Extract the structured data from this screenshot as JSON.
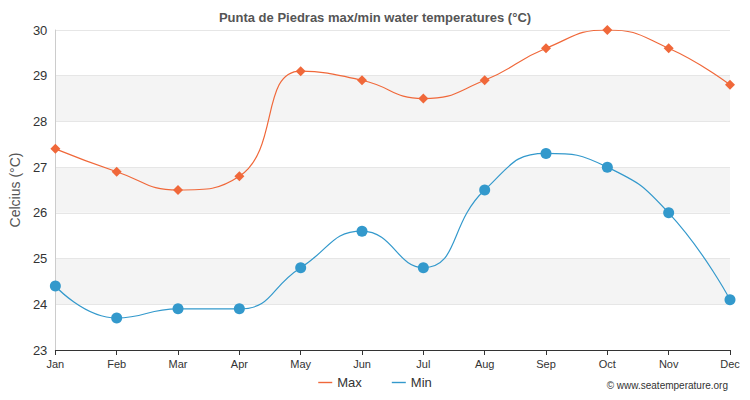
{
  "chart_data": {
    "type": "line",
    "title": "Punta de Piedras max/min water temperatures (°C)",
    "ylabel": "Celcius (°C)",
    "categories": [
      "Jan",
      "Feb",
      "Mar",
      "Apr",
      "May",
      "Jun",
      "Jul",
      "Aug",
      "Sep",
      "Oct",
      "Nov",
      "Dec"
    ],
    "series": [
      {
        "name": "Max",
        "color": "#f0683a",
        "marker": "diamond",
        "values": [
          27.4,
          26.9,
          26.5,
          26.8,
          29.1,
          28.9,
          28.5,
          28.9,
          29.6,
          30.0,
          29.6,
          28.8
        ]
      },
      {
        "name": "Min",
        "color": "#3399cc",
        "marker": "circle",
        "values": [
          24.4,
          23.7,
          23.9,
          23.9,
          24.8,
          25.6,
          24.8,
          26.5,
          27.3,
          27.0,
          26.0,
          24.1
        ]
      }
    ],
    "ylim": [
      23,
      30
    ],
    "yticks": [
      23,
      24,
      25,
      26,
      27,
      28,
      29,
      30
    ],
    "grid": true,
    "legend": "bottom",
    "line_style": "smooth",
    "annotations": [
      "© www.seatemperature.org"
    ]
  }
}
